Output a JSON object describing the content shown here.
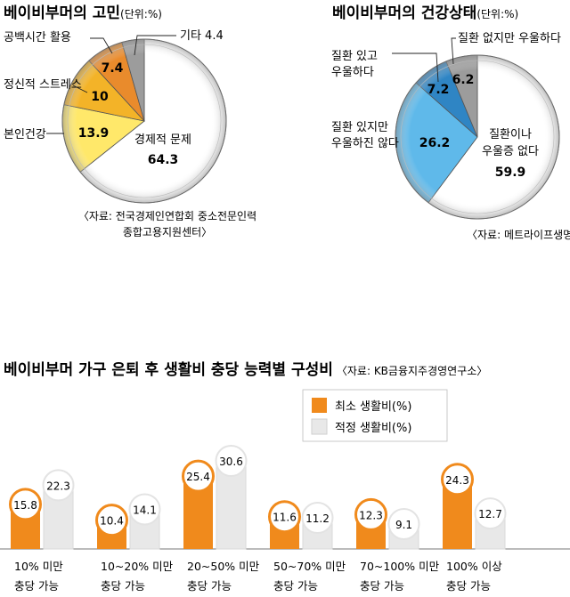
{
  "chart_data": [
    {
      "type": "pie",
      "title": "베이비부머의 고민",
      "unit": "(단위:%)",
      "source": "〈자료: 전국경제인연합회 중소전문인력 종합고용지원센터〉",
      "slices": [
        {
          "label": "경제적 문제",
          "value": 64.3,
          "color": "#ffffff"
        },
        {
          "label": "본인건강",
          "value": 13.9,
          "color": "#ffe86a"
        },
        {
          "label": "정신적 스트레스",
          "value": 10,
          "color": "#f3b328"
        },
        {
          "label": "공백시간 활용",
          "value": 7.4,
          "color": "#e98b2c"
        },
        {
          "label": "기타",
          "value": 4.4,
          "color": "#9c9c9c"
        }
      ]
    },
    {
      "type": "pie",
      "title": "베이비부머의 건강상태",
      "unit": "(단위:%)",
      "source": "〈자료: 메트라이프생명〉",
      "slices": [
        {
          "label": "질환이나 우울증 없다",
          "value": 59.9,
          "color": "#ffffff"
        },
        {
          "label": "질환 있지만 우울하진 않다",
          "value": 26.2,
          "color": "#5fb9ea"
        },
        {
          "label": "질환 있고 우울하다",
          "value": 7.2,
          "color": "#2f85c4"
        },
        {
          "label": "질환 없지만 우울하다",
          "value": 6.2,
          "color": "#9c9c9c"
        }
      ]
    },
    {
      "type": "bar",
      "title": "베이비부머 가구 은퇴 후 생활비 충당 능력별 구성비",
      "source": "〈자료: KB금융지주경영연구소〉",
      "categories": [
        "10% 미만 충당 가능",
        "10~20% 미만 충당 가능",
        "20~50% 미만 충당 가능",
        "50~70% 미만 충당 가능",
        "70~100% 미만 충당 가능",
        "100% 이상 충당 가능"
      ],
      "category_lines": [
        [
          "10% 미만",
          "충당 가능"
        ],
        [
          "10~20% 미만",
          "충당 가능"
        ],
        [
          "20~50% 미만",
          "충당 가능"
        ],
        [
          "50~70% 미만",
          "충당 가능"
        ],
        [
          "70~100% 미만",
          "충당 가능"
        ],
        [
          "100% 이상",
          "충당 가능"
        ]
      ],
      "series": [
        {
          "name": "최소 생활비(%)",
          "values": [
            15.8,
            10.4,
            25.4,
            11.6,
            12.3,
            24.3
          ],
          "color": "#f08a1c"
        },
        {
          "name": "적정 생활비(%)",
          "values": [
            22.3,
            14.1,
            30.6,
            11.2,
            9.1,
            12.7
          ],
          "color": "#e8e8e8"
        }
      ],
      "legend": "top-right"
    }
  ]
}
